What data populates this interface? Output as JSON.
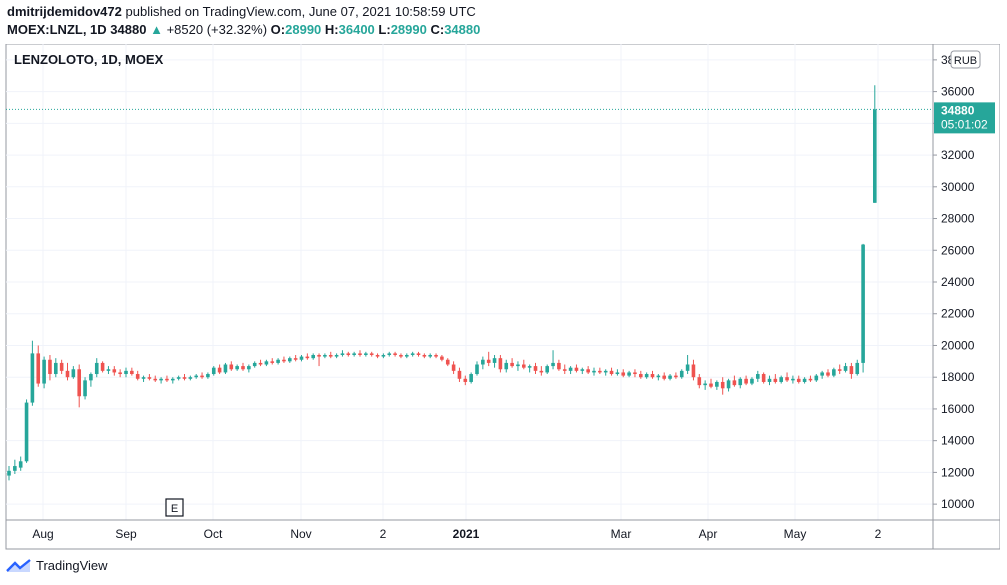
{
  "header": {
    "user": "dmitrijdemidov472",
    "published": "published on TradingView.com, June 07, 2021 10:58:59 UTC",
    "symbol": "MOEX:LNZL, 1D",
    "last": "34880",
    "change_arrow": "▲",
    "change": "+8520 (+32.32%)",
    "open_label": "O:",
    "open": "28990",
    "high_label": "H:",
    "high": "36400",
    "low_label": "L:",
    "low": "28990",
    "close_label": "C:",
    "close": "34880"
  },
  "footer": {
    "brand": "TradingView",
    "logo_icon": "tradingview-logo-icon"
  },
  "colors": {
    "up": "#26a69a",
    "down": "#ef5350",
    "grid": "#f0f3fa",
    "axis": "#131722"
  },
  "chart_data": {
    "type": "candlestick",
    "title": "LENZOLOTO, 1D, MOEX",
    "currency": "RUB",
    "ylim": [
      9000,
      39000
    ],
    "y_ticks": [
      10000,
      12000,
      14000,
      16000,
      18000,
      20000,
      22000,
      24000,
      26000,
      28000,
      30000,
      32000,
      34000,
      36000,
      38000
    ],
    "x_ticks": [
      "Aug",
      "Sep",
      "Oct",
      "Nov",
      "2",
      "2021",
      "Mar",
      "Apr",
      "May",
      "2"
    ],
    "last_price": {
      "value": 34880,
      "label": "34880",
      "countdown": "05:01:02"
    },
    "event_marker": "E",
    "series": [
      {
        "t": 0,
        "o": 11800,
        "h": 12400,
        "l": 11500,
        "c": 12100
      },
      {
        "t": 1,
        "o": 12100,
        "h": 12800,
        "l": 11900,
        "c": 12400
      },
      {
        "t": 2,
        "o": 12300,
        "h": 13000,
        "l": 12100,
        "c": 12700
      },
      {
        "t": 3,
        "o": 12700,
        "h": 16600,
        "l": 12600,
        "c": 16400
      },
      {
        "t": 4,
        "o": 16400,
        "h": 20300,
        "l": 16200,
        "c": 19500
      },
      {
        "t": 5,
        "o": 19500,
        "h": 20000,
        "l": 17400,
        "c": 17600
      },
      {
        "t": 6,
        "o": 17600,
        "h": 19300,
        "l": 17300,
        "c": 19100
      },
      {
        "t": 7,
        "o": 19100,
        "h": 19400,
        "l": 17800,
        "c": 18200
      },
      {
        "t": 8,
        "o": 18200,
        "h": 19200,
        "l": 18000,
        "c": 18900
      },
      {
        "t": 9,
        "o": 18900,
        "h": 19100,
        "l": 18200,
        "c": 18400
      },
      {
        "t": 10,
        "o": 18400,
        "h": 18900,
        "l": 17800,
        "c": 18000
      },
      {
        "t": 11,
        "o": 18000,
        "h": 18700,
        "l": 17900,
        "c": 18500
      },
      {
        "t": 12,
        "o": 18500,
        "h": 18800,
        "l": 16100,
        "c": 16800
      },
      {
        "t": 13,
        "o": 16800,
        "h": 18000,
        "l": 16600,
        "c": 17800
      },
      {
        "t": 14,
        "o": 17800,
        "h": 18300,
        "l": 17400,
        "c": 18200
      },
      {
        "t": 15,
        "o": 18200,
        "h": 19200,
        "l": 18000,
        "c": 18900
      },
      {
        "t": 16,
        "o": 18900,
        "h": 19000,
        "l": 18300,
        "c": 18400
      },
      {
        "t": 17,
        "o": 18400,
        "h": 18700,
        "l": 18200,
        "c": 18500
      },
      {
        "t": 18,
        "o": 18500,
        "h": 18700,
        "l": 18100,
        "c": 18300
      },
      {
        "t": 19,
        "o": 18300,
        "h": 18500,
        "l": 18000,
        "c": 18200
      },
      {
        "t": 20,
        "o": 18200,
        "h": 18600,
        "l": 18000,
        "c": 18400
      },
      {
        "t": 21,
        "o": 18400,
        "h": 18600,
        "l": 18100,
        "c": 18200
      },
      {
        "t": 22,
        "o": 18200,
        "h": 18400,
        "l": 17800,
        "c": 17900
      },
      {
        "t": 23,
        "o": 17900,
        "h": 18100,
        "l": 17700,
        "c": 18000
      },
      {
        "t": 24,
        "o": 18000,
        "h": 18200,
        "l": 17800,
        "c": 17900
      },
      {
        "t": 25,
        "o": 17900,
        "h": 18100,
        "l": 17700,
        "c": 17800
      },
      {
        "t": 26,
        "o": 17800,
        "h": 18000,
        "l": 17600,
        "c": 17900
      },
      {
        "t": 27,
        "o": 17900,
        "h": 18100,
        "l": 17700,
        "c": 17800
      },
      {
        "t": 28,
        "o": 17800,
        "h": 18000,
        "l": 17600,
        "c": 17900
      },
      {
        "t": 29,
        "o": 17900,
        "h": 18100,
        "l": 17800,
        "c": 18000
      },
      {
        "t": 30,
        "o": 18000,
        "h": 18200,
        "l": 17800,
        "c": 17900
      },
      {
        "t": 31,
        "o": 17900,
        "h": 18100,
        "l": 17800,
        "c": 18000
      },
      {
        "t": 32,
        "o": 18000,
        "h": 18200,
        "l": 17900,
        "c": 18100
      },
      {
        "t": 33,
        "o": 18100,
        "h": 18300,
        "l": 17900,
        "c": 18000
      },
      {
        "t": 34,
        "o": 18000,
        "h": 18300,
        "l": 17900,
        "c": 18200
      },
      {
        "t": 35,
        "o": 18200,
        "h": 18700,
        "l": 18100,
        "c": 18600
      },
      {
        "t": 36,
        "o": 18600,
        "h": 18800,
        "l": 18200,
        "c": 18300
      },
      {
        "t": 37,
        "o": 18300,
        "h": 18900,
        "l": 18200,
        "c": 18800
      },
      {
        "t": 38,
        "o": 18800,
        "h": 19000,
        "l": 18400,
        "c": 18500
      },
      {
        "t": 39,
        "o": 18500,
        "h": 18800,
        "l": 18400,
        "c": 18700
      },
      {
        "t": 40,
        "o": 18700,
        "h": 18900,
        "l": 18400,
        "c": 18500
      },
      {
        "t": 41,
        "o": 18500,
        "h": 18800,
        "l": 18300,
        "c": 18700
      },
      {
        "t": 42,
        "o": 18700,
        "h": 19000,
        "l": 18600,
        "c": 18900
      },
      {
        "t": 43,
        "o": 18900,
        "h": 19100,
        "l": 18700,
        "c": 18800
      },
      {
        "t": 44,
        "o": 18800,
        "h": 19100,
        "l": 18700,
        "c": 19000
      },
      {
        "t": 45,
        "o": 19000,
        "h": 19200,
        "l": 18800,
        "c": 18900
      },
      {
        "t": 46,
        "o": 18900,
        "h": 19200,
        "l": 18800,
        "c": 19100
      },
      {
        "t": 47,
        "o": 19100,
        "h": 19300,
        "l": 18900,
        "c": 19000
      },
      {
        "t": 48,
        "o": 19000,
        "h": 19300,
        "l": 18900,
        "c": 19200
      },
      {
        "t": 49,
        "o": 19200,
        "h": 19400,
        "l": 19000,
        "c": 19100
      },
      {
        "t": 50,
        "o": 19100,
        "h": 19400,
        "l": 19000,
        "c": 19300
      },
      {
        "t": 51,
        "o": 19300,
        "h": 19500,
        "l": 19100,
        "c": 19200
      },
      {
        "t": 52,
        "o": 19200,
        "h": 19500,
        "l": 19100,
        "c": 19400
      },
      {
        "t": 53,
        "o": 19400,
        "h": 19500,
        "l": 18700,
        "c": 19300
      },
      {
        "t": 54,
        "o": 19300,
        "h": 19500,
        "l": 19200,
        "c": 19400
      },
      {
        "t": 55,
        "o": 19400,
        "h": 19600,
        "l": 19200,
        "c": 19300
      },
      {
        "t": 56,
        "o": 19300,
        "h": 19500,
        "l": 19200,
        "c": 19400
      },
      {
        "t": 57,
        "o": 19400,
        "h": 19700,
        "l": 19300,
        "c": 19500
      },
      {
        "t": 58,
        "o": 19500,
        "h": 19600,
        "l": 19300,
        "c": 19400
      },
      {
        "t": 59,
        "o": 19400,
        "h": 19600,
        "l": 19300,
        "c": 19500
      },
      {
        "t": 60,
        "o": 19500,
        "h": 19700,
        "l": 19300,
        "c": 19400
      },
      {
        "t": 61,
        "o": 19400,
        "h": 19600,
        "l": 19300,
        "c": 19500
      },
      {
        "t": 62,
        "o": 19500,
        "h": 19600,
        "l": 19300,
        "c": 19400
      },
      {
        "t": 63,
        "o": 19400,
        "h": 19500,
        "l": 19200,
        "c": 19300
      },
      {
        "t": 64,
        "o": 19300,
        "h": 19500,
        "l": 19200,
        "c": 19400
      },
      {
        "t": 65,
        "o": 19400,
        "h": 19600,
        "l": 19300,
        "c": 19500
      },
      {
        "t": 66,
        "o": 19500,
        "h": 19600,
        "l": 19300,
        "c": 19400
      },
      {
        "t": 67,
        "o": 19400,
        "h": 19500,
        "l": 19200,
        "c": 19300
      },
      {
        "t": 68,
        "o": 19300,
        "h": 19500,
        "l": 19200,
        "c": 19400
      },
      {
        "t": 69,
        "o": 19400,
        "h": 19600,
        "l": 19300,
        "c": 19500
      },
      {
        "t": 70,
        "o": 19500,
        "h": 19600,
        "l": 19300,
        "c": 19400
      },
      {
        "t": 71,
        "o": 19400,
        "h": 19500,
        "l": 19200,
        "c": 19300
      },
      {
        "t": 72,
        "o": 19300,
        "h": 19500,
        "l": 19200,
        "c": 19400
      },
      {
        "t": 73,
        "o": 19400,
        "h": 19500,
        "l": 19200,
        "c": 19300
      },
      {
        "t": 74,
        "o": 19300,
        "h": 19400,
        "l": 19000,
        "c": 19100
      },
      {
        "t": 75,
        "o": 19100,
        "h": 19200,
        "l": 18700,
        "c": 18800
      },
      {
        "t": 76,
        "o": 18800,
        "h": 19000,
        "l": 18200,
        "c": 18400
      },
      {
        "t": 77,
        "o": 18400,
        "h": 18600,
        "l": 17700,
        "c": 17900
      },
      {
        "t": 78,
        "o": 17900,
        "h": 18100,
        "l": 17500,
        "c": 17700
      },
      {
        "t": 79,
        "o": 17700,
        "h": 18300,
        "l": 17600,
        "c": 18200
      },
      {
        "t": 80,
        "o": 18200,
        "h": 19000,
        "l": 18100,
        "c": 18800
      },
      {
        "t": 81,
        "o": 18800,
        "h": 19300,
        "l": 18500,
        "c": 19100
      },
      {
        "t": 82,
        "o": 19100,
        "h": 19600,
        "l": 18700,
        "c": 18900
      },
      {
        "t": 83,
        "o": 18900,
        "h": 19400,
        "l": 18600,
        "c": 19200
      },
      {
        "t": 84,
        "o": 19200,
        "h": 19400,
        "l": 18300,
        "c": 18500
      },
      {
        "t": 85,
        "o": 18500,
        "h": 19100,
        "l": 18300,
        "c": 18900
      },
      {
        "t": 86,
        "o": 18900,
        "h": 19200,
        "l": 18600,
        "c": 18700
      },
      {
        "t": 87,
        "o": 18700,
        "h": 19000,
        "l": 18400,
        "c": 18800
      },
      {
        "t": 88,
        "o": 18800,
        "h": 19100,
        "l": 18500,
        "c": 18600
      },
      {
        "t": 89,
        "o": 18600,
        "h": 18800,
        "l": 18300,
        "c": 18700
      },
      {
        "t": 90,
        "o": 18700,
        "h": 18900,
        "l": 18200,
        "c": 18400
      },
      {
        "t": 91,
        "o": 18400,
        "h": 18700,
        "l": 18100,
        "c": 18300
      },
      {
        "t": 92,
        "o": 18300,
        "h": 18800,
        "l": 18200,
        "c": 18700
      },
      {
        "t": 93,
        "o": 18700,
        "h": 19700,
        "l": 18500,
        "c": 18900
      },
      {
        "t": 94,
        "o": 18900,
        "h": 19100,
        "l": 18400,
        "c": 18500
      },
      {
        "t": 95,
        "o": 18500,
        "h": 18800,
        "l": 18200,
        "c": 18400
      },
      {
        "t": 96,
        "o": 18400,
        "h": 18700,
        "l": 18200,
        "c": 18600
      },
      {
        "t": 97,
        "o": 18600,
        "h": 18800,
        "l": 18300,
        "c": 18400
      },
      {
        "t": 98,
        "o": 18400,
        "h": 18600,
        "l": 18200,
        "c": 18500
      },
      {
        "t": 99,
        "o": 18500,
        "h": 18700,
        "l": 18200,
        "c": 18300
      },
      {
        "t": 100,
        "o": 18300,
        "h": 18600,
        "l": 18100,
        "c": 18400
      },
      {
        "t": 101,
        "o": 18400,
        "h": 18600,
        "l": 18200,
        "c": 18300
      },
      {
        "t": 102,
        "o": 18300,
        "h": 18500,
        "l": 18100,
        "c": 18400
      },
      {
        "t": 103,
        "o": 18400,
        "h": 18600,
        "l": 18100,
        "c": 18200
      },
      {
        "t": 104,
        "o": 18200,
        "h": 18500,
        "l": 18100,
        "c": 18300
      },
      {
        "t": 105,
        "o": 18300,
        "h": 18500,
        "l": 18000,
        "c": 18100
      },
      {
        "t": 106,
        "o": 18100,
        "h": 18400,
        "l": 18000,
        "c": 18300
      },
      {
        "t": 107,
        "o": 18300,
        "h": 18500,
        "l": 18000,
        "c": 18200
      },
      {
        "t": 108,
        "o": 18200,
        "h": 18400,
        "l": 17900,
        "c": 18000
      },
      {
        "t": 109,
        "o": 18000,
        "h": 18300,
        "l": 17900,
        "c": 18200
      },
      {
        "t": 110,
        "o": 18200,
        "h": 18400,
        "l": 17900,
        "c": 18000
      },
      {
        "t": 111,
        "o": 18000,
        "h": 18200,
        "l": 17800,
        "c": 18100
      },
      {
        "t": 112,
        "o": 18100,
        "h": 18300,
        "l": 17800,
        "c": 17900
      },
      {
        "t": 113,
        "o": 17900,
        "h": 18200,
        "l": 17800,
        "c": 18100
      },
      {
        "t": 114,
        "o": 18100,
        "h": 18300,
        "l": 17900,
        "c": 18000
      },
      {
        "t": 115,
        "o": 18000,
        "h": 18500,
        "l": 17900,
        "c": 18400
      },
      {
        "t": 116,
        "o": 18400,
        "h": 19400,
        "l": 18200,
        "c": 18800
      },
      {
        "t": 117,
        "o": 18800,
        "h": 19100,
        "l": 17800,
        "c": 18000
      },
      {
        "t": 118,
        "o": 18000,
        "h": 18200,
        "l": 17300,
        "c": 17500
      },
      {
        "t": 119,
        "o": 17500,
        "h": 17800,
        "l": 17200,
        "c": 17600
      },
      {
        "t": 120,
        "o": 17600,
        "h": 17900,
        "l": 17300,
        "c": 17400
      },
      {
        "t": 121,
        "o": 17400,
        "h": 17800,
        "l": 17200,
        "c": 17700
      },
      {
        "t": 122,
        "o": 17700,
        "h": 18000,
        "l": 16900,
        "c": 17300
      },
      {
        "t": 123,
        "o": 17300,
        "h": 17900,
        "l": 17100,
        "c": 17800
      },
      {
        "t": 124,
        "o": 17800,
        "h": 18100,
        "l": 17400,
        "c": 17500
      },
      {
        "t": 125,
        "o": 17500,
        "h": 18000,
        "l": 17300,
        "c": 17900
      },
      {
        "t": 126,
        "o": 17900,
        "h": 18100,
        "l": 17500,
        "c": 17600
      },
      {
        "t": 127,
        "o": 17600,
        "h": 18000,
        "l": 17500,
        "c": 17900
      },
      {
        "t": 128,
        "o": 17900,
        "h": 18400,
        "l": 17700,
        "c": 18200
      },
      {
        "t": 129,
        "o": 18200,
        "h": 18300,
        "l": 17600,
        "c": 17700
      },
      {
        "t": 130,
        "o": 17700,
        "h": 18100,
        "l": 17500,
        "c": 17900
      },
      {
        "t": 131,
        "o": 17900,
        "h": 18200,
        "l": 17600,
        "c": 17700
      },
      {
        "t": 132,
        "o": 17700,
        "h": 18100,
        "l": 17600,
        "c": 18000
      },
      {
        "t": 133,
        "o": 18000,
        "h": 18300,
        "l": 17700,
        "c": 17800
      },
      {
        "t": 134,
        "o": 17800,
        "h": 18100,
        "l": 17600,
        "c": 17900
      },
      {
        "t": 135,
        "o": 17900,
        "h": 18100,
        "l": 17600,
        "c": 17700
      },
      {
        "t": 136,
        "o": 17700,
        "h": 18000,
        "l": 17600,
        "c": 17900
      },
      {
        "t": 137,
        "o": 17900,
        "h": 18100,
        "l": 17700,
        "c": 17800
      },
      {
        "t": 138,
        "o": 17800,
        "h": 18200,
        "l": 17700,
        "c": 18100
      },
      {
        "t": 139,
        "o": 18100,
        "h": 18400,
        "l": 17900,
        "c": 18300
      },
      {
        "t": 140,
        "o": 18300,
        "h": 18500,
        "l": 18000,
        "c": 18100
      },
      {
        "t": 141,
        "o": 18100,
        "h": 18600,
        "l": 18000,
        "c": 18500
      },
      {
        "t": 142,
        "o": 18500,
        "h": 18800,
        "l": 18200,
        "c": 18400
      },
      {
        "t": 143,
        "o": 18400,
        "h": 18900,
        "l": 18300,
        "c": 18700
      },
      {
        "t": 144,
        "o": 18700,
        "h": 18900,
        "l": 17900,
        "c": 18200
      },
      {
        "t": 145,
        "o": 18200,
        "h": 19100,
        "l": 18100,
        "c": 18900
      },
      {
        "t": 146,
        "o": 18900,
        "h": 26400,
        "l": 18300,
        "c": 26360
      },
      {
        "t": 148,
        "o": 28990,
        "h": 36400,
        "l": 28990,
        "c": 34880
      }
    ]
  }
}
